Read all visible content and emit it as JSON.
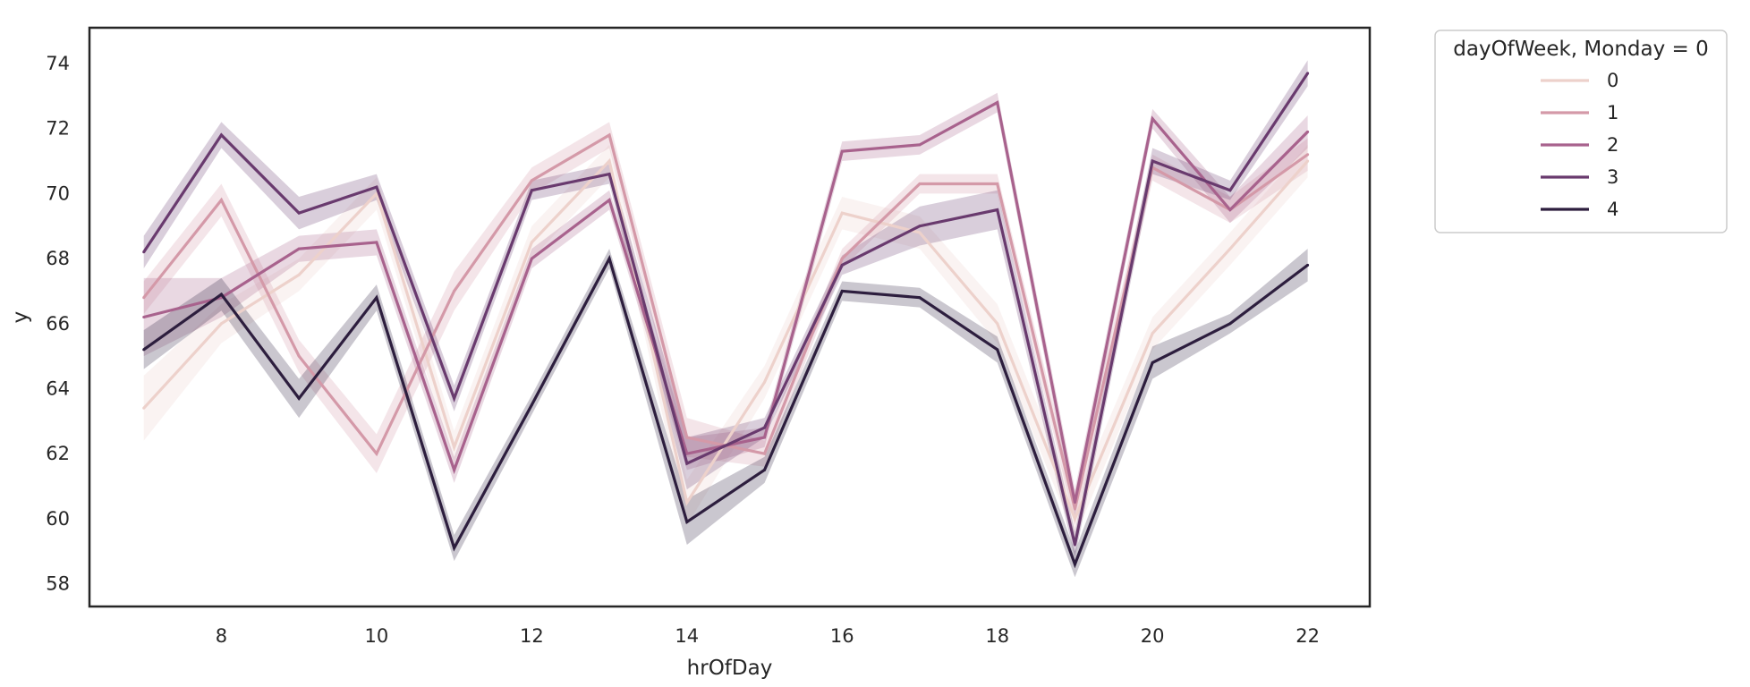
{
  "chart_data": {
    "type": "line",
    "xlabel": "hrOfDay",
    "ylabel": "y",
    "xlim": [
      6.3,
      22.8
    ],
    "ylim": [
      57.3,
      75.1
    ],
    "xticks": [
      8,
      10,
      12,
      14,
      16,
      18,
      20,
      22
    ],
    "yticks": [
      58,
      60,
      62,
      64,
      66,
      68,
      70,
      72,
      74
    ],
    "grid": false,
    "legend": {
      "title": "dayOfWeek, Monday = 0",
      "placement": "outside-top-right"
    },
    "x": [
      7,
      8,
      9,
      10,
      11,
      12,
      13,
      14,
      15,
      16,
      17,
      18,
      19,
      20,
      21,
      22
    ],
    "series": [
      {
        "name": "0",
        "color": "#edd1cb",
        "values": [
          63.4,
          66.0,
          67.5,
          70.0,
          62.2,
          68.5,
          71.0,
          60.5,
          64.2,
          69.4,
          68.8,
          66.0,
          60.0,
          65.7,
          68.3,
          71.0
        ],
        "ci": [
          1.0,
          0.6,
          0.5,
          0.5,
          0.5,
          0.5,
          0.5,
          0.7,
          0.5,
          0.5,
          0.5,
          0.6,
          0.6,
          0.5,
          0.5,
          0.5
        ]
      },
      {
        "name": "1",
        "color": "#d499a8",
        "values": [
          66.8,
          69.8,
          65.0,
          62.0,
          67.0,
          70.4,
          71.8,
          62.5,
          62.0,
          68.0,
          70.3,
          70.3,
          60.3,
          70.8,
          69.5,
          71.2
        ],
        "ci": [
          0.5,
          0.5,
          0.5,
          0.6,
          0.6,
          0.4,
          0.4,
          0.6,
          0.4,
          0.3,
          0.3,
          0.3,
          0.5,
          0.4,
          0.4,
          0.5
        ]
      },
      {
        "name": "2",
        "color": "#a8628d",
        "values": [
          66.2,
          66.8,
          68.3,
          68.5,
          61.5,
          68.0,
          69.8,
          62.0,
          62.5,
          71.3,
          71.5,
          72.8,
          60.5,
          72.3,
          69.5,
          71.9
        ],
        "ci": [
          1.2,
          0.6,
          0.4,
          0.4,
          0.4,
          0.3,
          0.3,
          0.5,
          0.3,
          0.3,
          0.3,
          0.3,
          0.4,
          0.3,
          0.4,
          0.5
        ]
      },
      {
        "name": "3",
        "color": "#693a6e",
        "values": [
          68.2,
          71.8,
          69.4,
          70.2,
          63.7,
          70.1,
          70.6,
          61.7,
          62.8,
          67.8,
          69.0,
          69.5,
          59.2,
          71.0,
          70.1,
          73.7
        ],
        "ci": [
          0.5,
          0.4,
          0.5,
          0.4,
          0.4,
          0.3,
          0.3,
          0.8,
          0.3,
          0.3,
          0.6,
          0.6,
          0.4,
          0.4,
          0.3,
          0.4
        ]
      },
      {
        "name": "4",
        "color": "#2d1e3e",
        "values": [
          65.2,
          66.9,
          63.7,
          66.8,
          59.1,
          63.5,
          68.0,
          59.9,
          61.5,
          67.0,
          66.8,
          65.2,
          58.6,
          64.8,
          66.0,
          67.8
        ],
        "ci": [
          0.6,
          0.5,
          0.6,
          0.4,
          0.4,
          0.3,
          0.3,
          0.7,
          0.4,
          0.3,
          0.3,
          0.4,
          0.4,
          0.5,
          0.3,
          0.5
        ]
      }
    ]
  }
}
